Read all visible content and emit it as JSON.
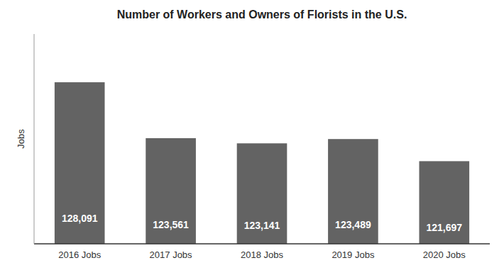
{
  "chart_data": {
    "type": "bar",
    "title": "Number of Workers and Owners of Florists in the U.S.",
    "categories": [
      "2016 Jobs",
      "2017 Jobs",
      "2018 Jobs",
      "2019 Jobs",
      "2020 Jobs"
    ],
    "values": [
      128091,
      123561,
      123141,
      123489,
      121697
    ],
    "value_labels": [
      "128,091",
      "123,561",
      "123,141",
      "123,489",
      "121,697"
    ],
    "data_labels": true,
    "color": "#636363",
    "ylabel": "Jobs",
    "ylim": [
      115000,
      132000
    ],
    "tick_labels": "x",
    "grid": false
  }
}
